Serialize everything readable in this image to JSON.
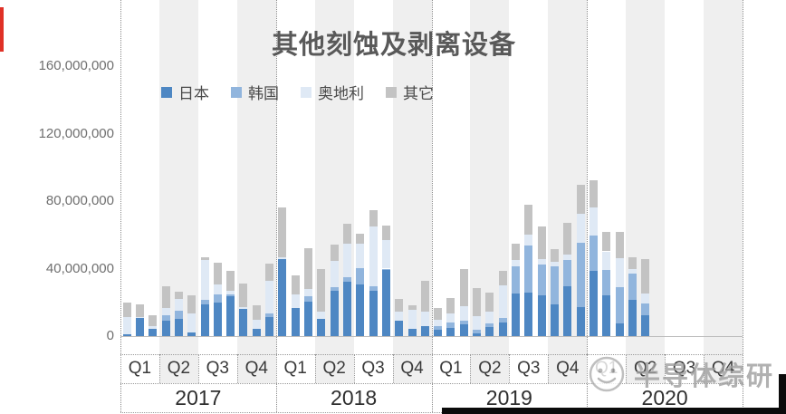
{
  "watermark": {
    "text": "半导体综研"
  },
  "chart_data": {
    "type": "bar",
    "subtype": "stacked-monthly-bars-grouped-by-quarter-and-year",
    "title": "其他刻蚀及剥离设备",
    "legend_position": "top-left",
    "ylim": [
      0,
      160000000
    ],
    "y_ticks": [
      {
        "value": 160000000,
        "label": "160,000,000"
      },
      {
        "value": 120000000,
        "label": "120,000,000"
      },
      {
        "value": 80000000,
        "label": "80,000,000"
      },
      {
        "value": 40000000,
        "label": "40,000,000"
      },
      {
        "value": 0,
        "label": "0"
      }
    ],
    "series": [
      {
        "name": "日本",
        "color": "#4e87c3"
      },
      {
        "name": "韩国",
        "color": "#91b5dd"
      },
      {
        "name": "奥地利",
        "color": "#dfe9f5"
      },
      {
        "name": "其它",
        "color": "#c3c3c3"
      }
    ],
    "stripe_color": "#efefef",
    "years": [
      {
        "label": "2017",
        "quarters": [
          "Q1",
          "Q2",
          "Q3",
          "Q4"
        ],
        "monthly_values": [
          [
            1300000,
            0,
            10200000,
            8200000
          ],
          [
            10700000,
            0,
            600000,
            7500000
          ],
          [
            4300000,
            0,
            1400000,
            6800000
          ],
          [
            9300000,
            2900000,
            4500000,
            12900000
          ],
          [
            10400000,
            4800000,
            6600000,
            4700000
          ],
          [
            2300000,
            0,
            11100000,
            10700000
          ],
          [
            18800000,
            2700000,
            23600000,
            1400000
          ],
          [
            19700000,
            4800000,
            5900000,
            12900000
          ],
          [
            23600000,
            900000,
            2400000,
            11600000
          ],
          [
            16100000,
            0,
            900000,
            14300000
          ],
          [
            4500000,
            0,
            5400000,
            8100000
          ],
          [
            11500000,
            1800000,
            19700000,
            9900000
          ]
        ]
      },
      {
        "label": "2018",
        "quarters": [
          "Q1",
          "Q2",
          "Q3",
          "Q4"
        ],
        "monthly_values": [
          [
            45600000,
            0,
            1000000,
            29900000
          ],
          [
            16600000,
            0,
            7900000,
            11600000
          ],
          [
            20600000,
            3200000,
            3900000,
            24500000
          ],
          [
            10400000,
            0,
            4300000,
            25200000
          ],
          [
            26900000,
            2100000,
            15800000,
            9300000
          ],
          [
            32200000,
            2700000,
            19700000,
            12000000
          ],
          [
            30400000,
            9800000,
            14300000,
            6300000
          ],
          [
            26900000,
            2700000,
            35300000,
            9500000
          ],
          [
            39000000,
            1000000,
            16800000,
            8600000
          ],
          [
            8900000,
            0,
            5400000,
            7700000
          ],
          [
            4500000,
            0,
            11300000,
            2500000
          ],
          [
            5700000,
            0,
            8600000,
            18300000
          ]
        ]
      },
      {
        "label": "2019",
        "quarters": [
          "Q1",
          "Q2",
          "Q3",
          "Q4"
        ],
        "monthly_values": [
          [
            3600000,
            2100000,
            4100000,
            6600000
          ],
          [
            5000000,
            3000000,
            5400000,
            9300000
          ],
          [
            6800000,
            2500000,
            8600000,
            21800000
          ],
          [
            1800000,
            1800000,
            8100000,
            16500000
          ],
          [
            5400000,
            2100000,
            6800000,
            11600000
          ],
          [
            8100000,
            2700000,
            19300000,
            8800000
          ],
          [
            25400000,
            16100000,
            3600000,
            9500000
          ],
          [
            26000000,
            27700000,
            6600000,
            17500000
          ],
          [
            24200000,
            18400000,
            3000000,
            19200000
          ],
          [
            18800000,
            22400000,
            2700000,
            7500000
          ],
          [
            29500000,
            15600000,
            3200000,
            18800000
          ],
          [
            17000000,
            38500000,
            17000000,
            17400000
          ]
        ]
      },
      {
        "label": "2020",
        "quarters": [
          "Q1",
          "Q2",
          "Q3",
          "Q4"
        ],
        "monthly_values": [
          [
            38500000,
            20900000,
            16600000,
            16100000
          ],
          [
            24200000,
            14900000,
            11100000,
            11600000
          ],
          [
            7500000,
            21500000,
            17000000,
            15600000
          ],
          [
            21500000,
            15800000,
            2500000,
            6800000
          ],
          [
            12500000,
            6800000,
            6100000,
            20200000
          ],
          [
            0,
            0,
            0,
            0
          ],
          [
            0,
            0,
            0,
            0
          ],
          [
            0,
            0,
            0,
            0
          ],
          [
            0,
            0,
            0,
            0
          ],
          [
            0,
            0,
            0,
            0
          ],
          [
            0,
            0,
            0,
            0
          ],
          [
            0,
            0,
            0,
            0
          ]
        ]
      }
    ]
  }
}
